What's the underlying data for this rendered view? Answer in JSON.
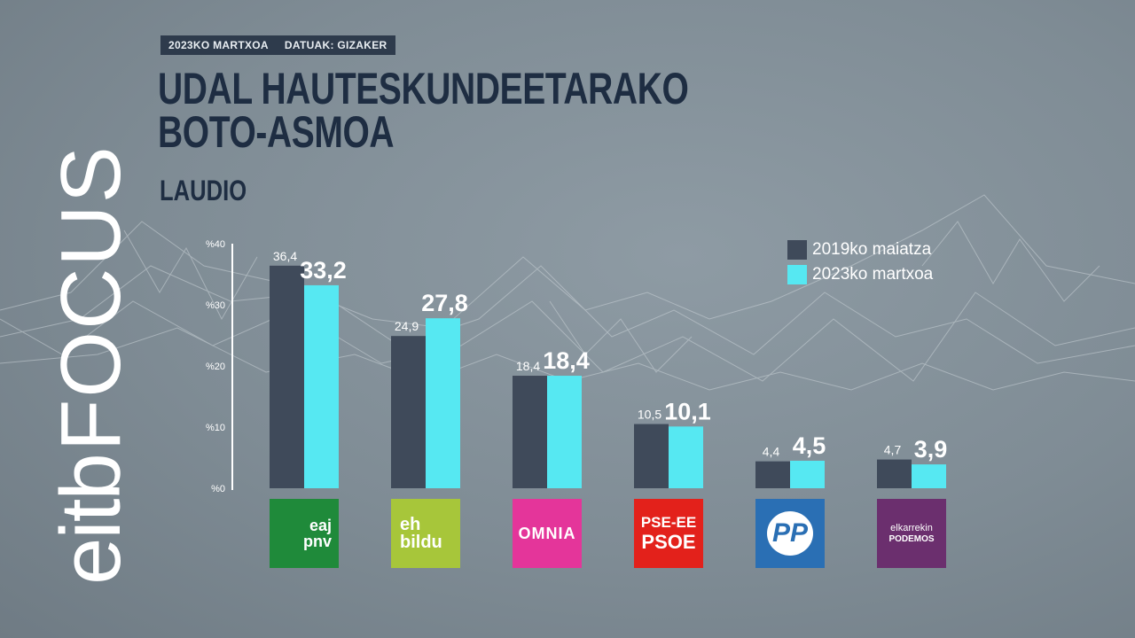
{
  "header": {
    "date_tag": "2023KO MARTXOA",
    "source_tag": "DATUAK: GIZAKER",
    "title_line1": "UDAL HAUTESKUNDEETARAKO",
    "title_line2": "BOTO-ASMOA",
    "subtitle": "LAUDIO"
  },
  "brand": {
    "part1": "eitb",
    "part2": "FOCUS"
  },
  "colors": {
    "series2019": "#3f4a5a",
    "series2023": "#56e8f2",
    "axis": "#ffffff"
  },
  "chart_data": {
    "type": "bar",
    "categories": [
      "EAJ-PNV",
      "EH Bildu",
      "Omnia",
      "PSE-EE PSOE",
      "PP",
      "Elkarrekin Podemos"
    ],
    "series": [
      {
        "name": "2019ko maiatza",
        "values": [
          36.4,
          24.9,
          18.4,
          10.5,
          4.4,
          4.7
        ],
        "labels": [
          "36,4",
          "24,9",
          "18,4",
          "10,5",
          "4,4",
          "4,7"
        ]
      },
      {
        "name": "2023ko martxoa",
        "values": [
          33.2,
          27.8,
          18.4,
          10.1,
          4.5,
          3.9
        ],
        "labels": [
          "33,2",
          "27,8",
          "18,4",
          "10,1",
          "4,5",
          "3,9"
        ]
      }
    ],
    "yticks": [
      "%0",
      "%10",
      "%20",
      "%30",
      "%40"
    ],
    "ylim": [
      0,
      40
    ],
    "legend_position": "top-right",
    "grid": false
  },
  "logos": [
    {
      "name": "eaj-pnv-logo",
      "color": "#1f8a3a",
      "line1": "eaj",
      "line2": "pnv"
    },
    {
      "name": "eh-bildu-logo",
      "color": "#a7c63a",
      "line1": "eh",
      "line2": "bildu"
    },
    {
      "name": "omnia-logo",
      "color": "#e4359a",
      "line1": "OMNIA",
      "line2": ""
    },
    {
      "name": "pse-psoe-logo",
      "color": "#e3211b",
      "line1": "PSE-EE",
      "line2": "PSOE"
    },
    {
      "name": "pp-logo",
      "color": "#2a6fb4",
      "line1": "PP",
      "line2": ""
    },
    {
      "name": "elkarrekin-podemos-logo",
      "color": "#6b2f6e",
      "line1": "elkarrekin",
      "line2": "PODEMOS"
    }
  ]
}
